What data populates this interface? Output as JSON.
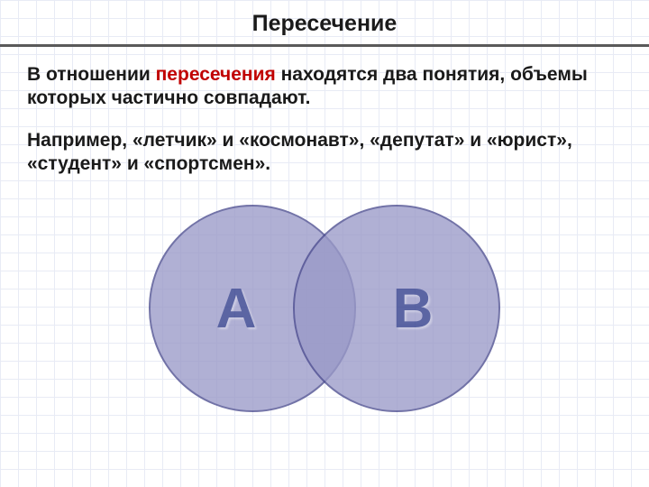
{
  "title": "Пересечение",
  "paragraph1_pre": "В отношении ",
  "paragraph1_highlight": "пересечения",
  "paragraph1_post": " находятся два понятия, объемы которых частично совпадают.",
  "paragraph2": "Например, «летчик» и «космонавт», «депутат» и «юрист», «студент» и «спортсмен».",
  "venn": {
    "left_label": "А",
    "right_label": "В",
    "circle_diameter": 230,
    "overlap": 70,
    "circle_fill": "#9a9ac8",
    "circle_border": "#4b4c8f",
    "label_color": "#2e3a8a"
  },
  "colors": {
    "separator": "#5a5a5a",
    "highlight": "#c00000",
    "text": "#1a1a1a",
    "grid": "#e8ebf5",
    "background": "#ffffff"
  }
}
